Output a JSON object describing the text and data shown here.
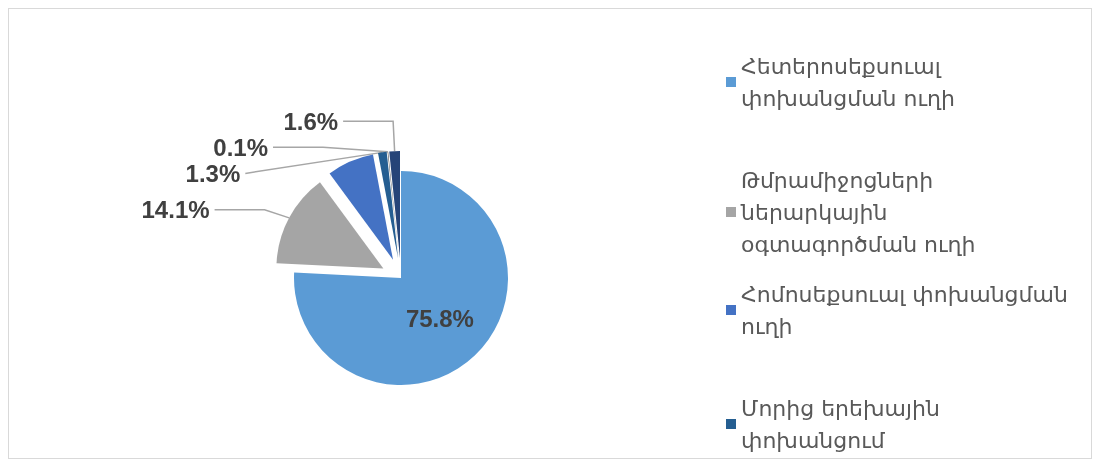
{
  "chart_data": {
    "type": "pie",
    "categories": [
      "Հետերոսեքսուալ փոխանցման ուղի",
      "Թմրամիջոցների ներարկային օգտագործման ուղի",
      "Հոմոսեքսուալ փոխանցման ուղի",
      "Մորից երեխային փոխանցում",
      null,
      null
    ],
    "values": [
      75.8,
      14.1,
      7.1,
      1.3,
      0.1,
      1.6
    ],
    "colors": [
      "#5b9bd5",
      "#a5a5a5",
      "#4472c4",
      "#255e91",
      "#636363",
      "#264478"
    ],
    "value_labels": [
      "75.8%",
      "14.1%",
      null,
      "1.3%",
      "0.1%",
      "1.6%"
    ],
    "legend": "right"
  }
}
